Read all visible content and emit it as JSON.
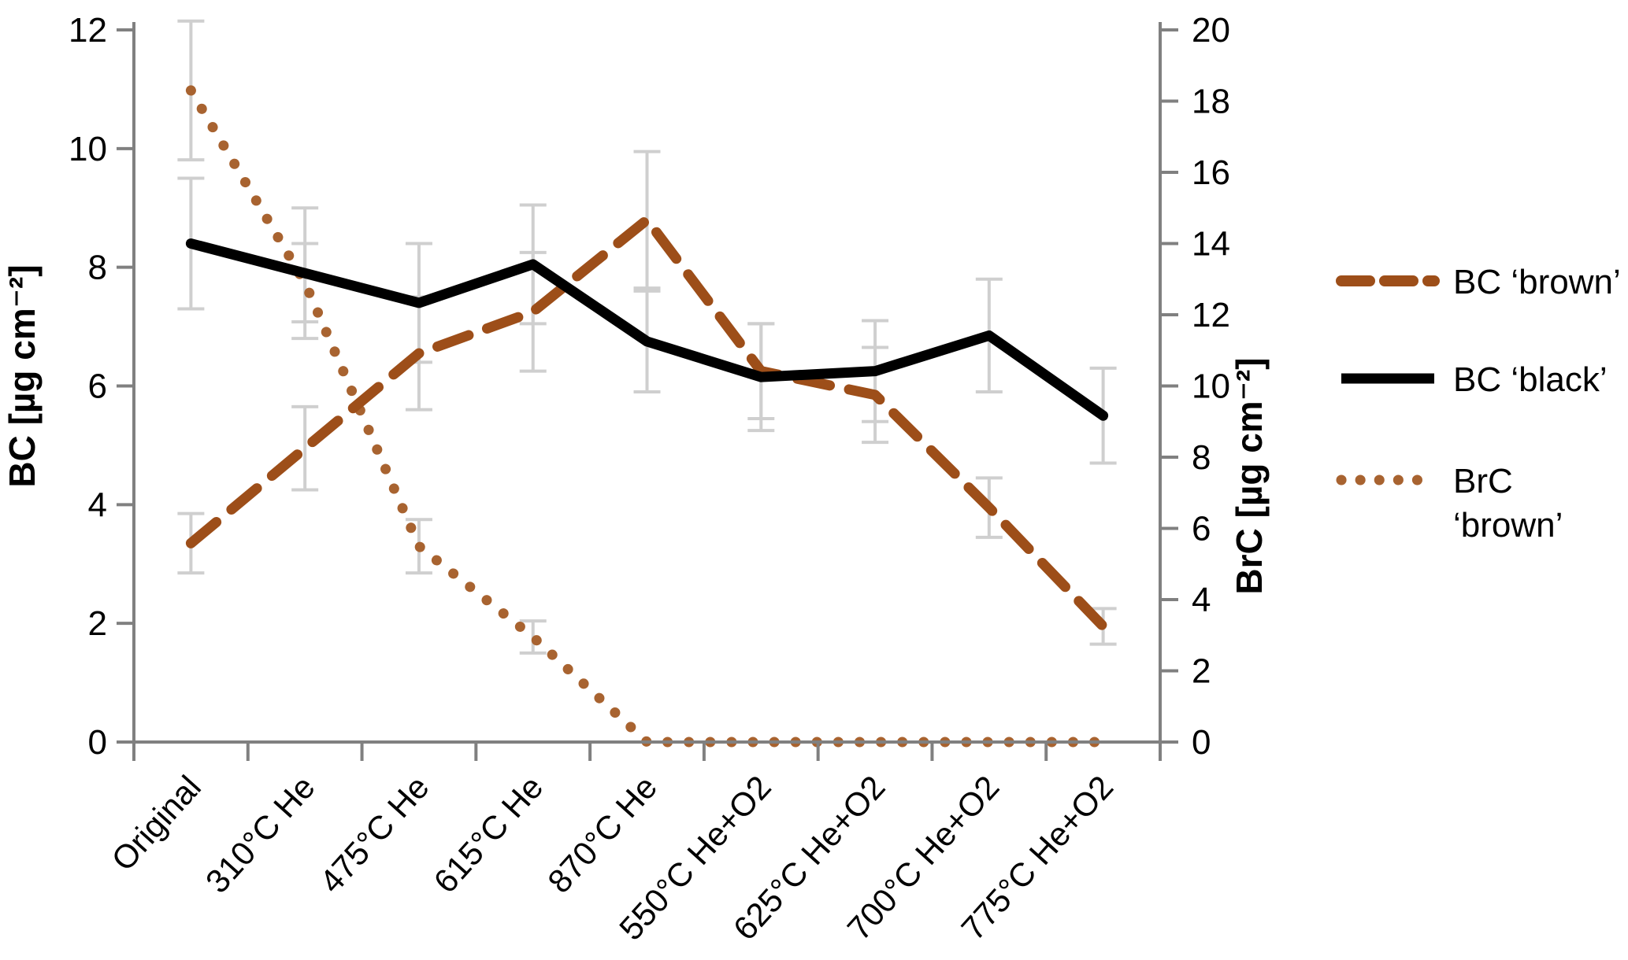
{
  "chart_data": {
    "type": "line",
    "title": "",
    "categories": [
      "Original",
      "310°C He",
      "475°C He",
      "615°C He",
      "870°C He",
      "550°C He+O2",
      "625°C He+O2",
      "700°C He+O2",
      "775°C He+O2"
    ],
    "left_axis": {
      "label": "BC [µg cm⁻²]",
      "min": 0,
      "max": 12,
      "step": 2
    },
    "right_axis": {
      "label": "BrC [µg cm⁻²]",
      "min": 0,
      "max": 20,
      "step": 2
    },
    "series": [
      {
        "name": "BC ‘brown’",
        "axis": "left",
        "style": "dashed",
        "color": "#9D4E19",
        "values": [
          3.35,
          4.95,
          6.55,
          7.25,
          8.8,
          6.25,
          5.85,
          3.95,
          1.95
        ],
        "errors": [
          0.5,
          0.7,
          0.95,
          1.0,
          1.15,
          0.8,
          0.8,
          0.5,
          0.3
        ]
      },
      {
        "name": "BC ‘black’",
        "axis": "left",
        "style": "solid",
        "color": "#000000",
        "values": [
          8.4,
          7.9,
          7.4,
          8.05,
          6.75,
          6.15,
          6.25,
          6.85,
          5.5
        ],
        "errors": [
          1.1,
          1.1,
          1.0,
          1.0,
          0.85,
          0.9,
          0.85,
          0.95,
          0.8
        ]
      },
      {
        "name": "BrC ‘brown’",
        "axis": "right",
        "style": "dotted",
        "color": "#A86330",
        "values": [
          18.3,
          12.9,
          5.5,
          2.95,
          0,
          0,
          0,
          0,
          0
        ],
        "errors": [
          1.95,
          1.1,
          0.75,
          0.45,
          0,
          0,
          0,
          0,
          0
        ]
      }
    ],
    "legend": {
      "position": "right",
      "items": [
        {
          "series": 0,
          "lines": [
            "BC ‘brown’"
          ]
        },
        {
          "series": 1,
          "lines": [
            "BC ‘black’"
          ]
        },
        {
          "series": 2,
          "lines": [
            "BrC",
            "‘brown’"
          ]
        }
      ]
    },
    "colors": {
      "axis": "#808080",
      "error_bar": "#CFCFCF",
      "text": "#000000"
    },
    "grid": false,
    "ylim_left": [
      0,
      12
    ],
    "ylim_right": [
      0,
      20
    ]
  }
}
